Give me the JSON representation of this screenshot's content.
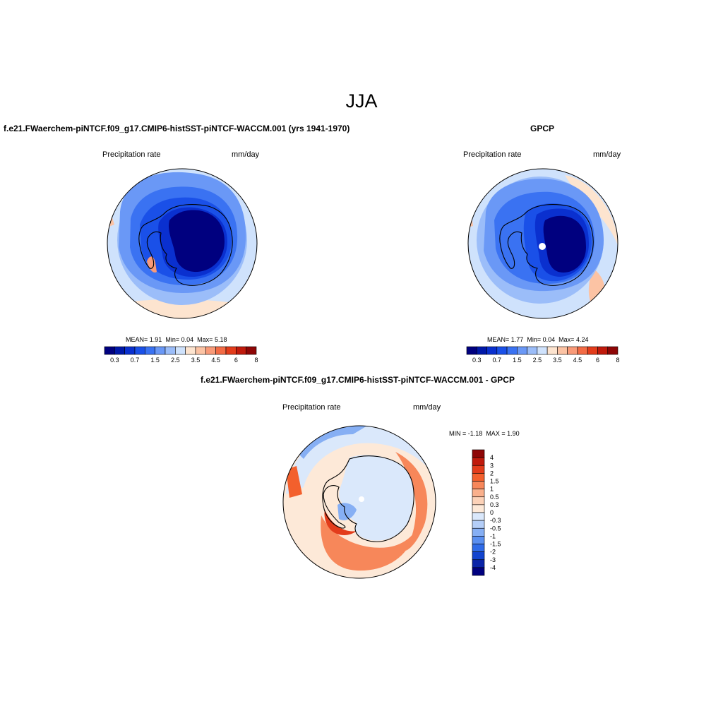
{
  "figure": {
    "title": "JJA"
  },
  "panels": [
    {
      "id": "model",
      "title": "f.e21.FWaerchem-piNTCF.f09_g17.CMIP6-histSST-piNTCF-WACCM.001 (yrs 1941-1970)",
      "variable": "Precipitation rate",
      "units": "mm/day",
      "stats": {
        "mean_label": "MEAN=",
        "mean": "1.91",
        "min_label": "Min=",
        "min": "0.04",
        "max_label": "Max=",
        "max": "5.18"
      }
    },
    {
      "id": "obs",
      "title": "GPCP",
      "variable": "Precipitation rate",
      "units": "mm/day",
      "stats": {
        "mean_label": "MEAN=",
        "mean": "1.77",
        "min_label": "Min=",
        "min": "0.04",
        "max_label": "Max=",
        "max": "4.24"
      }
    },
    {
      "id": "diff",
      "title": "f.e21.FWaerchem-piNTCF.f09_g17.CMIP6-histSST-piNTCF-WACCM.001 - GPCP",
      "variable": "Precipitation rate",
      "units": "mm/day",
      "stats": {
        "min_label": "MIN =",
        "min": "-1.18",
        "max_label": "MAX =",
        "max": "1.90"
      }
    }
  ],
  "colorbar_abs": {
    "colors": [
      "#00007f",
      "#0018a8",
      "#0a30cf",
      "#1a50e8",
      "#3a72f2",
      "#6a98f6",
      "#9bbdf9",
      "#cfe2fc",
      "#fde4cf",
      "#fcc3a4",
      "#f99a78",
      "#f36b45",
      "#e33c1b",
      "#c01a0c",
      "#8e0606"
    ],
    "labels": [
      "0.3",
      "0.7",
      "1.5",
      "2.5",
      "3.5",
      "4.5",
      "6",
      "8"
    ]
  },
  "colorbar_diff": {
    "colors": [
      "#8e0606",
      "#c01a0c",
      "#e33c1b",
      "#f3602d",
      "#f7875a",
      "#fab08c",
      "#fcd2b8",
      "#fde9d8",
      "#dae8fb",
      "#b4cef8",
      "#86aff4",
      "#5a8ff0",
      "#2f6be8",
      "#1244cf",
      "#0a24a8",
      "#00007f"
    ],
    "labels": [
      "4",
      "3",
      "2",
      "1.5",
      "1",
      "0.5",
      "0.3",
      "0",
      "-0.3",
      "-0.5",
      "-1",
      "-1.5",
      "-2",
      "-3",
      "-4"
    ]
  },
  "map_colors": {
    "land_outline": "#000000",
    "missing": "#ffffff"
  }
}
